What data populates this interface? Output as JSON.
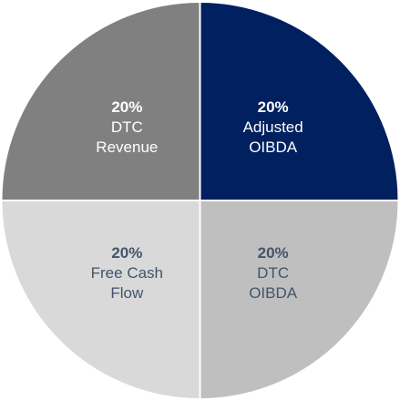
{
  "chart_data": {
    "type": "pie",
    "categories": [
      "Adjusted\nOIBDA",
      "DTC\nOIBDA",
      "Free Cash\nFlow",
      "DTC\nRevenue"
    ],
    "values": [
      20,
      20,
      20,
      20
    ],
    "value_labels": [
      "20%",
      "20%",
      "20%",
      "20%"
    ],
    "colors": [
      "#002060",
      "#bfbfbf",
      "#d9d9d9",
      "#808080"
    ],
    "label_colors": [
      "#ffffff",
      "#44546a",
      "#44546a",
      "#ffffff"
    ]
  }
}
